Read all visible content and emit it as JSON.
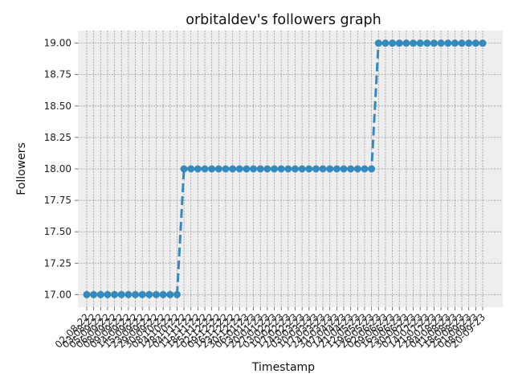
{
  "chart_data": {
    "type": "line",
    "title": "orbitaldev's followers graph",
    "xlabel": "Timestamp",
    "ylabel": "Followers",
    "ylim": [
      16.9,
      19.1
    ],
    "yticks": [
      17.0,
      17.25,
      17.5,
      17.75,
      18.0,
      18.25,
      18.5,
      18.75,
      19.0
    ],
    "grid": true,
    "line_style": "dashed",
    "marker": "circle",
    "colors": {
      "line": "#348ABD",
      "plot_bg": "#EEEEEE",
      "grid": "#999999"
    },
    "x": [
      "02-08-22",
      "03-08-22",
      "05-09-22",
      "06-09-22",
      "08-09-22",
      "09-09-22",
      "14-09-22",
      "15-09-22",
      "23-09-22",
      "29-09-22",
      "30-09-22",
      "08-10-22",
      "14-10-22",
      "28-10-22",
      "04-11-22",
      "11-11-22",
      "18-11-22",
      "25-11-22",
      "02-12-22",
      "09-12-22",
      "16-12-22",
      "23-12-22",
      "30-12-22",
      "06-01-23",
      "13-01-23",
      "20-01-23",
      "27-01-23",
      "03-02-23",
      "10-02-23",
      "17-02-23",
      "24-02-23",
      "03-03-23",
      "10-03-23",
      "17-03-23",
      "24-03-23",
      "31-03-23",
      "07-04-23",
      "14-04-23",
      "21-04-23",
      "12-05-23",
      "19-05-23",
      "26-05-23",
      "02-06-23",
      "09-06-23",
      "16-06-23",
      "23-06-23",
      "30-06-23",
      "07-07-23",
      "14-07-23",
      "21-07-23",
      "28-07-23",
      "04-08-23",
      "11-08-23",
      "18-08-23",
      "25-08-23",
      "01-09-23",
      "08-09-23",
      "20-09-23"
    ],
    "series": [
      {
        "values": [
          17,
          17,
          17,
          17,
          17,
          17,
          17,
          17,
          17,
          17,
          17,
          17,
          17,
          17,
          18,
          18,
          18,
          18,
          18,
          18,
          18,
          18,
          18,
          18,
          18,
          18,
          18,
          18,
          18,
          18,
          18,
          18,
          18,
          18,
          18,
          18,
          18,
          18,
          18,
          18,
          18,
          18,
          19,
          19,
          19,
          19,
          19,
          19,
          19,
          19,
          19,
          19,
          19,
          19,
          19,
          19,
          19,
          19
        ]
      }
    ]
  }
}
